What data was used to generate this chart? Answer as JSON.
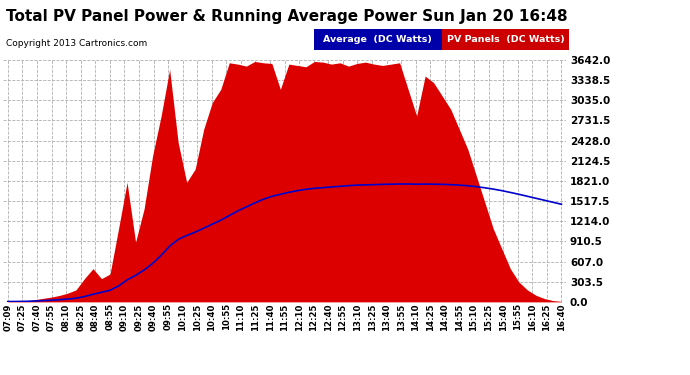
{
  "title": "Total PV Panel Power & Running Average Power Sun Jan 20 16:48",
  "copyright": "Copyright 2013 Cartronics.com",
  "yticks": [
    0.0,
    303.5,
    607.0,
    910.5,
    1214.0,
    1517.5,
    1821.0,
    2124.5,
    2428.0,
    2731.5,
    3035.0,
    3338.5,
    3642.0
  ],
  "ymax": 3642.0,
  "ymin": 0.0,
  "background_color": "#ffffff",
  "grid_color": "#b0b0b0",
  "fill_color": "#dd0000",
  "avg_line_color": "#0000cc",
  "legend_labels": [
    "Average  (DC Watts)",
    "PV Panels  (DC Watts)"
  ],
  "legend_bg_colors": [
    "#0000aa",
    "#cc0000"
  ],
  "xtick_labels": [
    "07:09",
    "07:25",
    "07:40",
    "07:55",
    "08:10",
    "08:25",
    "08:40",
    "08:55",
    "09:10",
    "09:25",
    "09:40",
    "09:55",
    "10:10",
    "10:25",
    "10:40",
    "10:55",
    "11:10",
    "11:25",
    "11:40",
    "11:55",
    "12:10",
    "12:25",
    "12:40",
    "12:55",
    "13:10",
    "13:25",
    "13:40",
    "13:55",
    "14:10",
    "14:25",
    "14:40",
    "14:55",
    "15:10",
    "15:25",
    "15:40",
    "15:55",
    "16:10",
    "16:25",
    "16:40"
  ],
  "pv_values": [
    5,
    8,
    12,
    30,
    50,
    70,
    95,
    130,
    180,
    350,
    500,
    350,
    420,
    1100,
    1800,
    900,
    1400,
    2200,
    2800,
    3500,
    2400,
    1800,
    2000,
    2600,
    3000,
    3200,
    3600,
    3580,
    3550,
    3620,
    3600,
    3590,
    3200,
    3580,
    3560,
    3540,
    3620,
    3610,
    3580,
    3600,
    3550,
    3590,
    3610,
    3580,
    3560,
    3580,
    3600,
    3200,
    2800,
    3400,
    3300,
    3100,
    2900,
    2600,
    2300,
    1900,
    1500,
    1100,
    800,
    500,
    300,
    180,
    100,
    50,
    20,
    8
  ],
  "avg_values": [
    5,
    6,
    8,
    12,
    18,
    24,
    32,
    42,
    55,
    80,
    115,
    145,
    175,
    240,
    330,
    400,
    480,
    580,
    700,
    840,
    940,
    1000,
    1050,
    1110,
    1170,
    1230,
    1300,
    1370,
    1430,
    1490,
    1545,
    1590,
    1620,
    1650,
    1675,
    1695,
    1710,
    1720,
    1730,
    1740,
    1750,
    1758,
    1762,
    1765,
    1770,
    1772,
    1775,
    1775,
    1772,
    1774,
    1772,
    1770,
    1765,
    1758,
    1748,
    1735,
    1718,
    1698,
    1675,
    1648,
    1620,
    1590,
    1560,
    1530,
    1500,
    1470
  ]
}
